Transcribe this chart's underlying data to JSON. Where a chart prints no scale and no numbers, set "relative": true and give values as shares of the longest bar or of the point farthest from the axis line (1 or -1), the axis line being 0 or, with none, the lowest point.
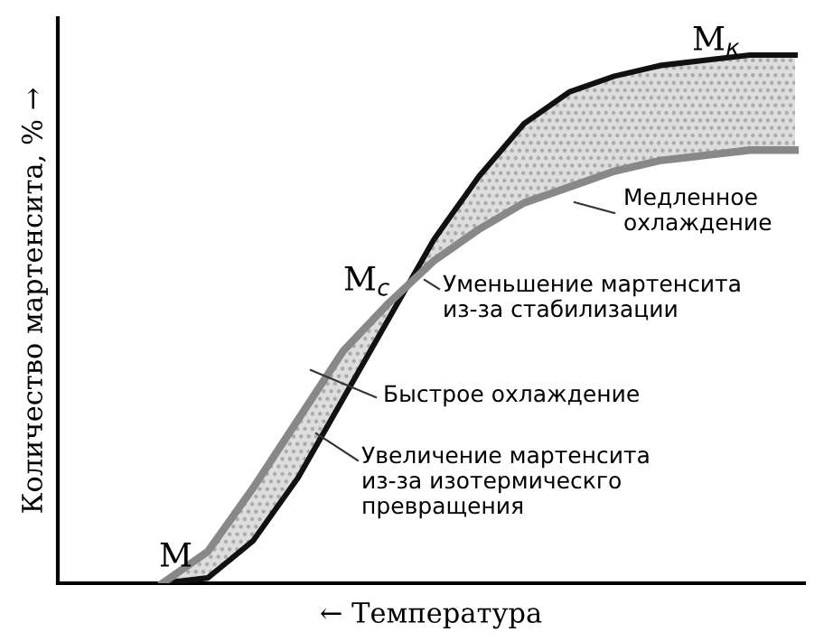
{
  "chart_data": {
    "type": "line",
    "relative": true,
    "xlabel": "← Температура",
    "ylabel": "Количество мартенсита, % →",
    "categories": [
      null,
      null,
      null,
      null,
      null,
      null,
      null,
      null,
      null,
      null,
      null,
      null,
      null,
      null,
      null
    ],
    "series": [
      {
        "color": "#111111",
        "values": [
          0,
          0.01,
          0.08,
          0.2,
          0.35,
          0.5,
          0.65,
          0.77,
          0.87,
          0.93,
          0.96,
          0.98,
          0.99,
          1,
          1
        ],
        "lower": [
          0,
          0.06,
          0.18,
          0.31,
          0.44,
          0.53,
          0.61,
          0.67,
          0.72,
          0.75,
          0.78,
          0.8,
          0.81,
          0.82,
          0.82
        ],
        "upper": [
          0,
          0.01,
          0.08,
          0.2,
          0.35,
          0.5,
          0.65,
          0.77,
          0.87,
          0.93,
          0.96,
          0.98,
          0.99,
          1,
          1
        ]
      },
      {
        "color": "#888888",
        "values": [
          0,
          0.06,
          0.18,
          0.31,
          0.44,
          0.53,
          0.61,
          0.67,
          0.72,
          0.75,
          0.78,
          0.8,
          0.81,
          0.82,
          0.82
        ]
      }
    ],
    "annotations": [
      "M",
      "M$_{к}$",
      "M$_{с}$",
      "Медленное\nохлаждение",
      "Уменьшение мартенсита\nиз-за стабилизации",
      "Быстрое охлаждение",
      "Увеличение мартенсита\nиз-за изотермическго\nпревращения"
    ],
    "grid": false,
    "legend": false,
    "marker": "none",
    "line_style": "solid"
  }
}
